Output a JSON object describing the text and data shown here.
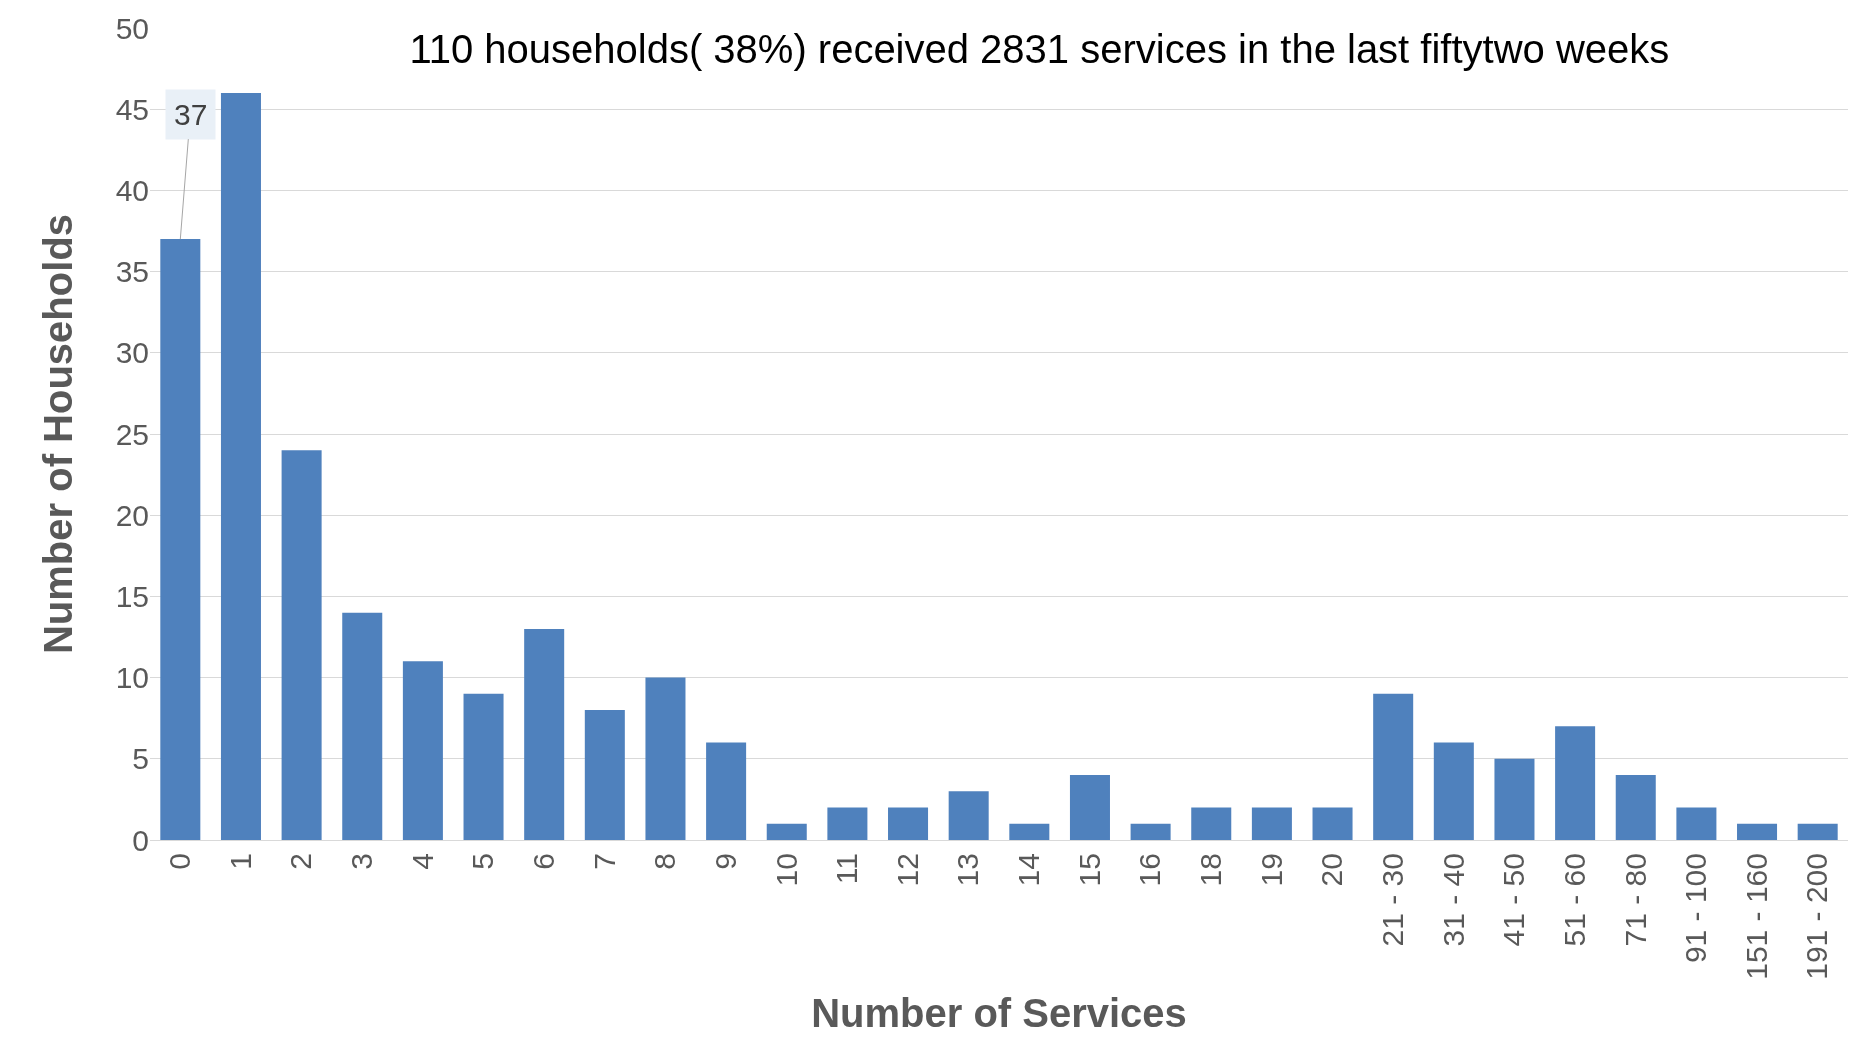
{
  "chart_data": {
    "type": "bar",
    "title": "110 households( 38%) received 2831 services in the last fiftytwo weeks",
    "xlabel": "Number of Services",
    "ylabel": "Number of Households",
    "categories": [
      "0",
      "1",
      "2",
      "3",
      "4",
      "5",
      "6",
      "7",
      "8",
      "9",
      "10",
      "11",
      "12",
      "13",
      "14",
      "15",
      "16",
      "18",
      "19",
      "20",
      "21 - 30",
      "31 - 40",
      "41 - 50",
      "51 - 60",
      "71 - 80",
      "91 - 100",
      "151 - 160",
      "191 - 200"
    ],
    "values": [
      37,
      46,
      24,
      14,
      11,
      9,
      13,
      8,
      10,
      6,
      1,
      2,
      2,
      3,
      1,
      4,
      1,
      2,
      2,
      2,
      9,
      6,
      5,
      7,
      4,
      2,
      1,
      1
    ],
    "value_labels": [
      "37",
      null,
      null,
      null,
      null,
      null,
      null,
      null,
      null,
      null,
      null,
      null,
      null,
      null,
      null,
      null,
      null,
      null,
      null,
      null,
      null,
      null,
      null,
      null,
      null,
      null,
      null,
      null
    ],
    "color": "#4f81bd",
    "ylim": [
      0,
      50
    ],
    "yticks": [
      0,
      5,
      10,
      15,
      20,
      25,
      30,
      35,
      40,
      45,
      50
    ],
    "grid": "y",
    "legend": false
  }
}
